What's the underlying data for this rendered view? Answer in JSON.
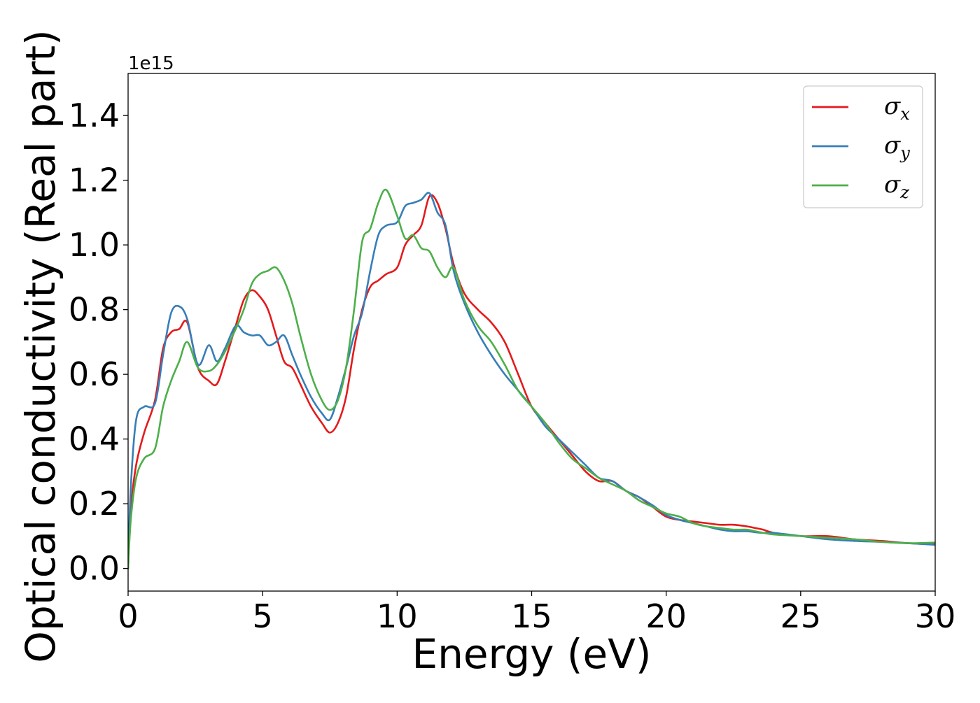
{
  "chart_data": {
    "type": "line",
    "title": "",
    "xlabel": "Energy (eV)",
    "ylabel": "Optical conductivity (Real part)",
    "y_offset_text": "1e15",
    "xlim": [
      0,
      30
    ],
    "ylim": [
      -0.07,
      1.53
    ],
    "x_ticks": [
      0,
      5,
      10,
      15,
      20,
      25,
      30
    ],
    "x_tick_labels": [
      "0",
      "5",
      "10",
      "15",
      "20",
      "25",
      "30"
    ],
    "y_ticks": [
      0.0,
      0.2,
      0.4,
      0.6,
      0.8,
      1.0,
      1.2,
      1.4
    ],
    "y_tick_labels": [
      "0.0",
      "0.2",
      "0.4",
      "0.6",
      "0.8",
      "1.0",
      "1.2",
      "1.4"
    ],
    "grid": false,
    "legend_position": "top-right",
    "series": [
      {
        "name": "σ_x",
        "legend_base": "σ",
        "legend_sub": "x",
        "color": "#e41a1c",
        "x": [
          0,
          0.1,
          0.3,
          0.6,
          1.0,
          1.3,
          1.6,
          1.9,
          2.2,
          2.6,
          3.0,
          3.3,
          3.6,
          4.0,
          4.3,
          4.6,
          4.9,
          5.2,
          5.5,
          5.8,
          6.1,
          6.4,
          6.8,
          7.2,
          7.5,
          7.8,
          8.1,
          8.4,
          8.7,
          9.0,
          9.3,
          9.6,
          10.0,
          10.3,
          10.6,
          10.9,
          11.2,
          11.5,
          11.8,
          12.1,
          12.5,
          13.0,
          13.5,
          14.0,
          14.5,
          15.0,
          15.5,
          16.0,
          16.5,
          17.0,
          17.5,
          18.0,
          18.5,
          19.0,
          19.5,
          20.0,
          20.5,
          21.0,
          21.5,
          22.0,
          22.5,
          23.0,
          23.3,
          23.6,
          24.0,
          25.0,
          26.0,
          27.0,
          28.0,
          29.0,
          30.0
        ],
        "values": [
          0.0,
          0.18,
          0.32,
          0.42,
          0.52,
          0.68,
          0.73,
          0.74,
          0.76,
          0.62,
          0.58,
          0.57,
          0.64,
          0.75,
          0.83,
          0.86,
          0.84,
          0.8,
          0.72,
          0.64,
          0.62,
          0.57,
          0.5,
          0.45,
          0.42,
          0.45,
          0.53,
          0.68,
          0.8,
          0.87,
          0.89,
          0.91,
          0.93,
          1.0,
          1.03,
          1.06,
          1.15,
          1.13,
          1.05,
          0.94,
          0.85,
          0.8,
          0.76,
          0.7,
          0.6,
          0.5,
          0.45,
          0.4,
          0.35,
          0.3,
          0.27,
          0.27,
          0.24,
          0.22,
          0.19,
          0.16,
          0.15,
          0.145,
          0.14,
          0.135,
          0.135,
          0.13,
          0.125,
          0.12,
          0.11,
          0.1,
          0.1,
          0.09,
          0.085,
          0.078,
          0.075
        ]
      },
      {
        "name": "σ_y",
        "legend_base": "σ",
        "legend_sub": "y",
        "color": "#377eb8",
        "x": [
          0,
          0.1,
          0.3,
          0.6,
          1.0,
          1.3,
          1.6,
          1.9,
          2.2,
          2.6,
          3.0,
          3.3,
          3.6,
          4.0,
          4.3,
          4.6,
          4.9,
          5.2,
          5.5,
          5.8,
          6.1,
          6.4,
          6.8,
          7.2,
          7.5,
          7.8,
          8.1,
          8.4,
          8.7,
          9.0,
          9.3,
          9.6,
          10.0,
          10.3,
          10.6,
          10.9,
          11.2,
          11.5,
          11.8,
          12.1,
          12.5,
          13.0,
          13.5,
          14.0,
          14.5,
          15.0,
          15.5,
          16.0,
          16.5,
          17.0,
          17.5,
          18.0,
          18.5,
          19.0,
          19.5,
          20.0,
          20.5,
          21.0,
          21.5,
          22.0,
          22.5,
          23.0,
          23.3,
          23.6,
          24.0,
          25.0,
          26.0,
          27.0,
          28.0,
          29.0,
          30.0
        ],
        "values": [
          0.0,
          0.25,
          0.46,
          0.5,
          0.51,
          0.66,
          0.79,
          0.81,
          0.77,
          0.63,
          0.69,
          0.64,
          0.68,
          0.75,
          0.73,
          0.72,
          0.72,
          0.69,
          0.7,
          0.72,
          0.66,
          0.6,
          0.53,
          0.48,
          0.46,
          0.53,
          0.62,
          0.72,
          0.79,
          0.92,
          1.03,
          1.06,
          1.07,
          1.12,
          1.13,
          1.14,
          1.16,
          1.1,
          1.06,
          0.92,
          0.82,
          0.73,
          0.66,
          0.6,
          0.55,
          0.5,
          0.44,
          0.4,
          0.36,
          0.32,
          0.28,
          0.27,
          0.24,
          0.22,
          0.195,
          0.165,
          0.15,
          0.14,
          0.13,
          0.12,
          0.115,
          0.115,
          0.112,
          0.11,
          0.11,
          0.1,
          0.09,
          0.085,
          0.082,
          0.078,
          0.073
        ]
      },
      {
        "name": "σ_z",
        "legend_base": "σ",
        "legend_sub": "z",
        "color": "#4daf4a",
        "x": [
          0,
          0.1,
          0.3,
          0.6,
          1.0,
          1.3,
          1.6,
          1.9,
          2.2,
          2.6,
          3.0,
          3.3,
          3.6,
          4.0,
          4.3,
          4.6,
          4.9,
          5.2,
          5.5,
          5.8,
          6.1,
          6.4,
          6.8,
          7.2,
          7.5,
          7.8,
          8.1,
          8.4,
          8.7,
          9.0,
          9.3,
          9.6,
          10.0,
          10.3,
          10.6,
          10.9,
          11.2,
          11.5,
          11.8,
          12.1,
          12.5,
          13.0,
          13.5,
          14.0,
          14.5,
          15.0,
          15.5,
          16.0,
          16.5,
          17.0,
          17.5,
          18.0,
          18.5,
          19.0,
          19.5,
          20.0,
          20.5,
          21.0,
          21.5,
          22.0,
          22.5,
          23.0,
          23.3,
          23.6,
          24.0,
          25.0,
          26.0,
          27.0,
          28.0,
          29.0,
          30.0
        ],
        "values": [
          0.0,
          0.15,
          0.28,
          0.34,
          0.37,
          0.5,
          0.58,
          0.64,
          0.7,
          0.62,
          0.61,
          0.63,
          0.67,
          0.74,
          0.8,
          0.88,
          0.91,
          0.92,
          0.93,
          0.89,
          0.82,
          0.72,
          0.6,
          0.52,
          0.49,
          0.52,
          0.62,
          0.8,
          1.01,
          1.05,
          1.13,
          1.17,
          1.09,
          1.02,
          1.03,
          0.99,
          0.98,
          0.93,
          0.9,
          0.93,
          0.83,
          0.75,
          0.7,
          0.63,
          0.55,
          0.5,
          0.45,
          0.39,
          0.34,
          0.31,
          0.28,
          0.26,
          0.24,
          0.21,
          0.19,
          0.17,
          0.16,
          0.14,
          0.13,
          0.125,
          0.12,
          0.12,
          0.115,
          0.11,
          0.105,
          0.1,
          0.095,
          0.09,
          0.082,
          0.078,
          0.08
        ]
      }
    ]
  }
}
